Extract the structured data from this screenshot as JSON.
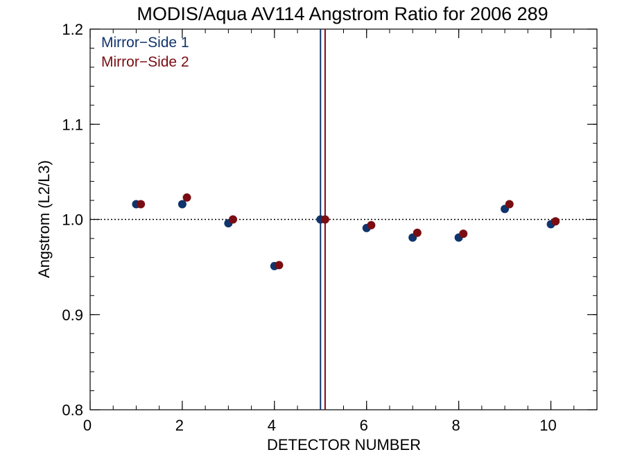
{
  "chart_data": {
    "type": "scatter",
    "title": "MODIS/Aqua AV114 Angstrom Ratio for 2006 289",
    "xlabel": "DETECTOR NUMBER",
    "ylabel": "Angstrom (L2/L3)",
    "xlim": [
      0,
      11
    ],
    "ylim": [
      0.8,
      1.2
    ],
    "x_ticks": [
      0,
      2,
      4,
      6,
      8,
      10
    ],
    "x_tick_labels": [
      "0",
      "2",
      "4",
      "6",
      "8",
      "10"
    ],
    "x_minor_step": 0.5,
    "y_ticks": [
      0.8,
      0.9,
      1.0,
      1.1,
      1.2
    ],
    "y_tick_labels": [
      "0.8",
      "0.9",
      "1.0",
      "1.1",
      "1.2"
    ],
    "y_minor_step": 0.02,
    "reference_line_y": 1.0,
    "legend_position": "top-left",
    "series": [
      {
        "name": "Mirror−Side 1",
        "color": "#10346c",
        "x": [
          1,
          2,
          3,
          4,
          5,
          6,
          7,
          8,
          9,
          10
        ],
        "y": [
          1.016,
          1.016,
          0.996,
          0.951,
          1.0,
          0.991,
          0.981,
          0.981,
          1.011,
          0.995
        ],
        "vertical_line_x": 5.0
      },
      {
        "name": "Mirror−Side 2",
        "color": "#7a0d12",
        "x": [
          1.1,
          2.1,
          3.1,
          4.1,
          5.1,
          6.1,
          7.1,
          8.1,
          9.1,
          10.1
        ],
        "y": [
          1.016,
          1.023,
          1.0,
          0.952,
          1.0,
          0.994,
          0.986,
          0.985,
          1.016,
          0.998
        ],
        "vertical_line_x": 5.1
      }
    ]
  }
}
